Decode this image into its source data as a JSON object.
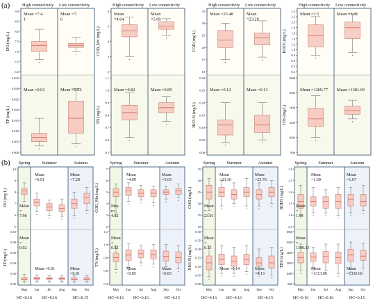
{
  "figure": {
    "panel_a_label": "(a)",
    "panel_b_label": "(b)",
    "header_high": "High connectivity",
    "header_low": "Low connectivity",
    "seasons": [
      "Spring",
      "Summer",
      "Autumn"
    ],
    "months": [
      "May",
      "Jun",
      "Jul",
      "Aug",
      "Sep",
      "Oct"
    ],
    "hc_labels": [
      "HC=0.16",
      "HC=0.16",
      "HC=0.15"
    ]
  },
  "colors": {
    "box_fill": "#f7c9bf",
    "box_edge": "#b05a4f",
    "median": "#d2665a",
    "spring_bg": "#f3f7e6",
    "summer_bg": "#ffffff",
    "autumn_bg": "#edf2fa",
    "frame": "#2b4a6b"
  },
  "chart_data": [
    {
      "type": "box",
      "panel": "a",
      "ylabel": "DO (mg/L)",
      "ylim": [
        6.0,
        9.0
      ],
      "ticks": [
        6.0,
        6.5,
        7.0,
        7.5,
        8.0,
        8.5,
        9.0
      ],
      "categories": [
        "High connectivity",
        "Low connectivity"
      ],
      "boxes": [
        {
          "whislo": 6.6,
          "q1": 7.0,
          "med": 7.3,
          "q3": 7.5,
          "whishi": 8.1
        },
        {
          "whislo": 7.0,
          "q1": 7.2,
          "med": 7.3,
          "q3": 7.4,
          "whishi": 7.7
        }
      ],
      "annotations": [
        "Mean =7.4\n1",
        "Mean =7.\n6"
      ]
    },
    {
      "type": "box",
      "panel": "a",
      "ylabel": "COD_Mn (mg/L)",
      "ylim": [
        2,
        6
      ],
      "ticks": [
        2,
        3,
        4,
        5,
        6
      ],
      "categories": [
        "High connectivity",
        "Low connectivity"
      ],
      "boxes": [
        {
          "whislo": 3.0,
          "q1": 4.3,
          "med": 4.7,
          "q3": 5.1,
          "whishi": 5.6
        },
        {
          "whislo": 4.4,
          "q1": 4.8,
          "med": 5.0,
          "q3": 5.3,
          "whishi": 5.5
        }
      ],
      "annotations": [
        "Mean\n=4.64",
        "Mean\n=5.09"
      ]
    },
    {
      "type": "box",
      "panel": "a",
      "ylabel": "COD (mg/L)",
      "ylim": [
        10,
        35
      ],
      "ticks": [
        10,
        15,
        20,
        25,
        30,
        35
      ],
      "categories": [
        "High connectivity",
        "Low connectivity"
      ],
      "boxes": [
        {
          "whislo": 15,
          "q1": 20,
          "med": 23,
          "q3": 27,
          "whishi": 30
        },
        {
          "whislo": 16,
          "q1": 21,
          "med": 24,
          "q3": 26,
          "whishi": 31
        }
      ],
      "annotations": [
        "Mean =23.48",
        "Mean\n=23.29"
      ]
    },
    {
      "type": "box",
      "panel": "a",
      "ylabel": "BOD5 (mg/L)",
      "ylim": [
        0.2,
        2.4
      ],
      "ticks": [
        0.2,
        0.4,
        0.6,
        0.8,
        1.0,
        1.2,
        1.4,
        1.6,
        1.8,
        2.0,
        2.2,
        2.4
      ],
      "categories": [
        "High connectivity",
        "Low connectivity"
      ],
      "boxes": [
        {
          "whislo": 0.8,
          "q1": 1.1,
          "med": 1.5,
          "q3": 1.9,
          "whishi": 2.2
        },
        {
          "whislo": 0.9,
          "q1": 1.4,
          "med": 1.8,
          "q3": 2.0,
          "whishi": 2.3
        }
      ],
      "annotations": [
        "Mean =1.5",
        "Mean =1.81"
      ]
    },
    {
      "type": "box",
      "panel": "a",
      "ylabel": "TP (mg/L)",
      "ylim": [
        0.0,
        0.035
      ],
      "ticks": [
        0.0,
        0.005,
        0.01,
        0.015,
        0.02,
        0.025,
        0.03,
        0.035
      ],
      "categories": [
        "High connectivity",
        "Low connectivity"
      ],
      "boxes": [
        {
          "whislo": 0.003,
          "q1": 0.005,
          "med": 0.007,
          "q3": 0.009,
          "whishi": 0.016
        },
        {
          "whislo": 0.004,
          "q1": 0.009,
          "med": 0.016,
          "q3": 0.024,
          "whishi": 0.03
        }
      ],
      "annotations": [
        "Mean =0.01",
        "Mean =0.02"
      ]
    },
    {
      "type": "box",
      "panel": "a",
      "ylabel": "TN (mg/L)",
      "ylim": [
        0.5,
        1.1
      ],
      "ticks": [
        0.5,
        0.6,
        0.7,
        0.8,
        0.9,
        1.0,
        1.1
      ],
      "categories": [
        "High connectivity",
        "Low connectivity"
      ],
      "boxes": [
        {
          "whislo": 0.62,
          "q1": 0.76,
          "med": 0.82,
          "q3": 0.88,
          "whishi": 0.98
        },
        {
          "whislo": 0.75,
          "q1": 0.82,
          "med": 0.86,
          "q3": 0.9,
          "whishi": 0.95
        }
      ],
      "annotations": [
        "Mean =0.82",
        "Mean =0.85"
      ]
    },
    {
      "type": "box",
      "panel": "a",
      "ylabel": "NH3-N (mg/L)",
      "ylim": [
        0.0,
        0.3
      ],
      "ticks": [
        0.0,
        0.05,
        0.1,
        0.15,
        0.2,
        0.25,
        0.3
      ],
      "categories": [
        "High connectivity",
        "Low connectivity"
      ],
      "boxes": [
        {
          "whislo": 0.04,
          "q1": 0.07,
          "med": 0.11,
          "q3": 0.13,
          "whishi": 0.2
        },
        {
          "whislo": 0.05,
          "q1": 0.08,
          "med": 0.11,
          "q3": 0.15,
          "whishi": 0.2
        }
      ],
      "annotations": [
        "Mean =0.12",
        "Mean =0.13"
      ]
    },
    {
      "type": "box",
      "panel": "a",
      "ylabel": "TDS (mg/L)",
      "ylim": [
        800,
        1800
      ],
      "ticks": [
        800,
        1000,
        1200,
        1400,
        1600,
        1800
      ],
      "categories": [
        "High connectivity",
        "Low connectivity"
      ],
      "boxes": [
        {
          "whislo": 1000,
          "q1": 1150,
          "med": 1250,
          "q3": 1390,
          "whishi": 1560
        },
        {
          "whislo": 1250,
          "q1": 1310,
          "med": 1360,
          "q3": 1420,
          "whishi": 1500
        }
      ],
      "annotations": [
        "Mean =1269.77",
        "Mean =1381.69"
      ]
    },
    {
      "type": "box",
      "panel": "b",
      "ylabel": "DO (mg/L)",
      "ylim": [
        5,
        10
      ],
      "ticks": [
        5,
        6,
        7,
        8,
        9,
        10
      ],
      "categories": [
        "May",
        "Jun",
        "Jul",
        "Aug",
        "Sep",
        "Oct"
      ],
      "boxes": [
        {
          "whislo": 7.2,
          "q1": 7.8,
          "med": 8.1,
          "q3": 8.3,
          "whishi": 8.8
        },
        {
          "whislo": 6.3,
          "q1": 6.8,
          "med": 7.1,
          "q3": 7.4,
          "whishi": 7.9
        },
        {
          "whislo": 6.0,
          "q1": 6.4,
          "med": 6.7,
          "q3": 7.0,
          "whishi": 7.3
        },
        {
          "whislo": 5.9,
          "q1": 6.3,
          "med": 6.6,
          "q3": 6.9,
          "whishi": 7.4
        },
        {
          "whislo": 6.0,
          "q1": 6.6,
          "med": 7.0,
          "q3": 7.4,
          "whishi": 8.0
        },
        {
          "whislo": 6.4,
          "q1": 7.0,
          "med": 7.5,
          "q3": 7.9,
          "whishi": 8.4
        }
      ],
      "annotations": [
        "Mean\n=\n7.98",
        "Mean\n=6.91",
        "Mean\n=7.28"
      ]
    },
    {
      "type": "box",
      "panel": "b",
      "ylabel": "COD_Mn (mg/L)",
      "ylim": [
        2,
        7
      ],
      "ticks": [
        2,
        3,
        4,
        5,
        6,
        7
      ],
      "categories": [
        "May",
        "Jun",
        "Jul",
        "Aug",
        "Sep",
        "Oct"
      ],
      "boxes": [
        {
          "whislo": 3.2,
          "q1": 4.6,
          "med": 5.0,
          "q3": 5.3,
          "whishi": 5.7
        },
        {
          "whislo": 4.2,
          "q1": 4.7,
          "med": 5.1,
          "q3": 5.4,
          "whishi": 5.8
        },
        {
          "whislo": 4.3,
          "q1": 4.6,
          "med": 4.9,
          "q3": 5.2,
          "whishi": 5.6
        },
        {
          "whislo": 4.1,
          "q1": 4.6,
          "med": 4.9,
          "q3": 5.2,
          "whishi": 5.5
        },
        {
          "whislo": 4.4,
          "q1": 4.8,
          "med": 5.0,
          "q3": 5.2,
          "whishi": 5.5
        },
        {
          "whislo": 4.5,
          "q1": 4.8,
          "med": 5.1,
          "q3": 5.3,
          "whishi": 5.7
        }
      ],
      "annotations": [
        "Mea\nn=\n4.82",
        "Mean\n=4.99",
        "Mean\n=5.03"
      ]
    },
    {
      "type": "box",
      "panel": "b",
      "ylabel": "COD (mg/L)",
      "ylim": [
        10,
        35
      ],
      "ticks": [
        10,
        15,
        20,
        25,
        30,
        35
      ],
      "categories": [
        "May",
        "Jun",
        "Jul",
        "Aug",
        "Sep",
        "Oct"
      ],
      "boxes": [
        {
          "whislo": 17,
          "q1": 22,
          "med": 25,
          "q3": 28,
          "whishi": 31
        },
        {
          "whislo": 19,
          "q1": 23,
          "med": 25,
          "q3": 27,
          "whishi": 30
        },
        {
          "whislo": 20,
          "q1": 22,
          "med": 24,
          "q3": 26,
          "whishi": 29
        },
        {
          "whislo": 19,
          "q1": 23,
          "med": 25,
          "q3": 27,
          "whishi": 31
        },
        {
          "whislo": 19,
          "q1": 22,
          "med": 24,
          "q3": 26,
          "whishi": 29
        },
        {
          "whislo": 20,
          "q1": 23,
          "med": 25,
          "q3": 27,
          "whishi": 30
        }
      ],
      "annotations": [
        "Mean\n=\n23.01",
        "Mean\n=23.36",
        "Mean\n=23.76"
      ]
    },
    {
      "type": "box",
      "panel": "b",
      "ylabel": "BOD5 (mg/L)",
      "ylim": [
        0.5,
        3.0
      ],
      "ticks": [
        0.5,
        1.0,
        1.5,
        2.0,
        2.5,
        3.0
      ],
      "categories": [
        "May",
        "Jun",
        "Jul",
        "Aug",
        "Sep",
        "Oct"
      ],
      "boxes": [
        {
          "whislo": 1.0,
          "q1": 1.3,
          "med": 1.6,
          "q3": 1.9,
          "whishi": 2.3
        },
        {
          "whislo": 1.1,
          "q1": 1.4,
          "med": 1.6,
          "q3": 1.8,
          "whishi": 2.2
        },
        {
          "whislo": 1.1,
          "q1": 1.3,
          "med": 1.6,
          "q3": 1.8,
          "whishi": 2.1
        },
        {
          "whislo": 1.0,
          "q1": 1.3,
          "med": 1.6,
          "q3": 1.9,
          "whishi": 2.2
        },
        {
          "whislo": 1.1,
          "q1": 1.4,
          "med": 1.7,
          "q3": 1.9,
          "whishi": 2.2
        },
        {
          "whislo": 1.2,
          "q1": 1.4,
          "med": 1.6,
          "q3": 1.9,
          "whishi": 2.3
        }
      ],
      "annotations": [
        "Mean\n=\n1.59",
        "Mean\n=1.60",
        "Mean\n=1.67"
      ]
    },
    {
      "type": "box",
      "panel": "b",
      "ylabel": "TP (mg/L)",
      "ylim": [
        0.0,
        0.1
      ],
      "ticks": [
        0.0,
        0.02,
        0.04,
        0.06,
        0.08,
        0.1
      ],
      "categories": [
        "May",
        "Jun",
        "Jul",
        "Aug",
        "Sep",
        "Oct"
      ],
      "boxes": [
        {
          "whislo": 0.004,
          "q1": 0.007,
          "med": 0.009,
          "q3": 0.012,
          "whishi": 0.018
        },
        {
          "whislo": 0.005,
          "q1": 0.008,
          "med": 0.01,
          "q3": 0.013,
          "whishi": 0.017
        },
        {
          "whislo": 0.005,
          "q1": 0.008,
          "med": 0.01,
          "q3": 0.012,
          "whishi": 0.016
        },
        {
          "whislo": 0.005,
          "q1": 0.008,
          "med": 0.01,
          "q3": 0.012,
          "whishi": 0.016
        },
        {
          "whislo": 0.004,
          "q1": 0.007,
          "med": 0.009,
          "q3": 0.011,
          "whishi": 0.015
        },
        {
          "whislo": 0.004,
          "q1": 0.007,
          "med": 0.009,
          "q3": 0.012,
          "whishi": 0.016
        }
      ],
      "annotations": [
        "Mean\n=\n0.02",
        "Mean =0.01",
        "Mean\n=0.01"
      ]
    },
    {
      "type": "box",
      "panel": "b",
      "ylabel": "TN (mg/L)",
      "ylim": [
        0.4,
        1.2
      ],
      "ticks": [
        0.4,
        0.6,
        0.8,
        1.0,
        1.2
      ],
      "categories": [
        "May",
        "Jun",
        "Jul",
        "Aug",
        "Sep",
        "Oct"
      ],
      "boxes": [
        {
          "whislo": 0.62,
          "q1": 0.74,
          "med": 0.8,
          "q3": 0.87,
          "whishi": 0.98
        },
        {
          "whislo": 0.65,
          "q1": 0.76,
          "med": 0.84,
          "q3": 0.92,
          "whishi": 1.02
        },
        {
          "whislo": 0.72,
          "q1": 0.8,
          "med": 0.86,
          "q3": 0.92,
          "whishi": 0.98
        },
        {
          "whislo": 0.7,
          "q1": 0.78,
          "med": 0.85,
          "q3": 0.92,
          "whishi": 1.0
        },
        {
          "whislo": 0.66,
          "q1": 0.75,
          "med": 0.82,
          "q3": 0.9,
          "whishi": 1.0
        },
        {
          "whislo": 0.63,
          "q1": 0.72,
          "med": 0.8,
          "q3": 0.89,
          "whishi": 0.99
        }
      ],
      "annotations": [
        "Mean\n=\n0.82",
        "Mean\n=0.85",
        "Mean\n=0.83"
      ]
    },
    {
      "type": "box",
      "panel": "b",
      "ylabel": "NH3-N (mg/L)",
      "ylim": [
        0.0,
        0.3
      ],
      "ticks": [
        0.0,
        0.05,
        0.1,
        0.15,
        0.2,
        0.25,
        0.3
      ],
      "categories": [
        "May",
        "Jun",
        "Jul",
        "Aug",
        "Sep",
        "Oct"
      ],
      "boxes": [
        {
          "whislo": 0.04,
          "q1": 0.08,
          "med": 0.12,
          "q3": 0.16,
          "whishi": 0.22
        },
        {
          "whislo": 0.06,
          "q1": 0.11,
          "med": 0.14,
          "q3": 0.17,
          "whishi": 0.22
        },
        {
          "whislo": 0.06,
          "q1": 0.1,
          "med": 0.13,
          "q3": 0.16,
          "whishi": 0.21
        },
        {
          "whislo": 0.07,
          "q1": 0.11,
          "med": 0.14,
          "q3": 0.17,
          "whishi": 0.22
        },
        {
          "whislo": 0.06,
          "q1": 0.1,
          "med": 0.12,
          "q3": 0.15,
          "whishi": 0.2
        },
        {
          "whislo": 0.05,
          "q1": 0.09,
          "med": 0.12,
          "q3": 0.16,
          "whishi": 0.21
        }
      ],
      "annotations": [
        "Mean\n=\n0.13",
        "Mean =0.14",
        "Mean\n=0.13"
      ]
    },
    {
      "type": "box",
      "panel": "b",
      "ylabel": "TDS (mg/L)",
      "ylim": [
        800,
        1800
      ],
      "ticks": [
        800,
        1000,
        1200,
        1400,
        1600,
        1800
      ],
      "categories": [
        "May",
        "Jun",
        "Jul",
        "Aug",
        "Sep",
        "Oct"
      ],
      "boxes": [
        {
          "whislo": 1050,
          "q1": 1200,
          "med": 1300,
          "q3": 1400,
          "whishi": 1560
        },
        {
          "whislo": 1100,
          "q1": 1230,
          "med": 1310,
          "q3": 1390,
          "whishi": 1500
        },
        {
          "whislo": 1050,
          "q1": 1200,
          "med": 1320,
          "q3": 1420,
          "whishi": 1560
        },
        {
          "whislo": 1000,
          "q1": 1180,
          "med": 1300,
          "q3": 1410,
          "whishi": 1560
        },
        {
          "whislo": 1080,
          "q1": 1230,
          "med": 1350,
          "q3": 1460,
          "whishi": 1600
        },
        {
          "whislo": 1100,
          "q1": 1250,
          "med": 1330,
          "q3": 1440,
          "whishi": 1580
        }
      ],
      "annotations": [
        "Mean\n=\n1300.13",
        "Mean\n=1313.05",
        "Mean\n=1336.60"
      ]
    }
  ]
}
